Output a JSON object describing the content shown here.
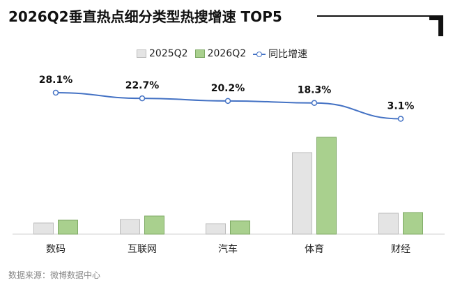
{
  "title": "2026Q2垂直热点细分类型热搜增速 TOP5",
  "source": "数据来源：微博数据中心",
  "chart_data": {
    "type": "bar",
    "categories": [
      "数码",
      "互联网",
      "汽车",
      "体育",
      "财经"
    ],
    "series": [
      {
        "name": "2025Q2",
        "values": [
          16,
          21,
          15,
          117,
          30
        ],
        "color": "#e4e4e4",
        "stroke": "#bdbdbd"
      },
      {
        "name": "2026Q2",
        "values": [
          20,
          26,
          19,
          139,
          31
        ],
        "color": "#a9d08e",
        "stroke": "#7faa66"
      }
    ],
    "line_series": {
      "name": "同比增速",
      "values": [
        28.1,
        22.7,
        20.2,
        18.3,
        3.1
      ],
      "labels": [
        "28.1%",
        "22.7%",
        "20.2%",
        "18.3%",
        "3.1%"
      ],
      "color": "#4472c4"
    },
    "legend": "top"
  }
}
